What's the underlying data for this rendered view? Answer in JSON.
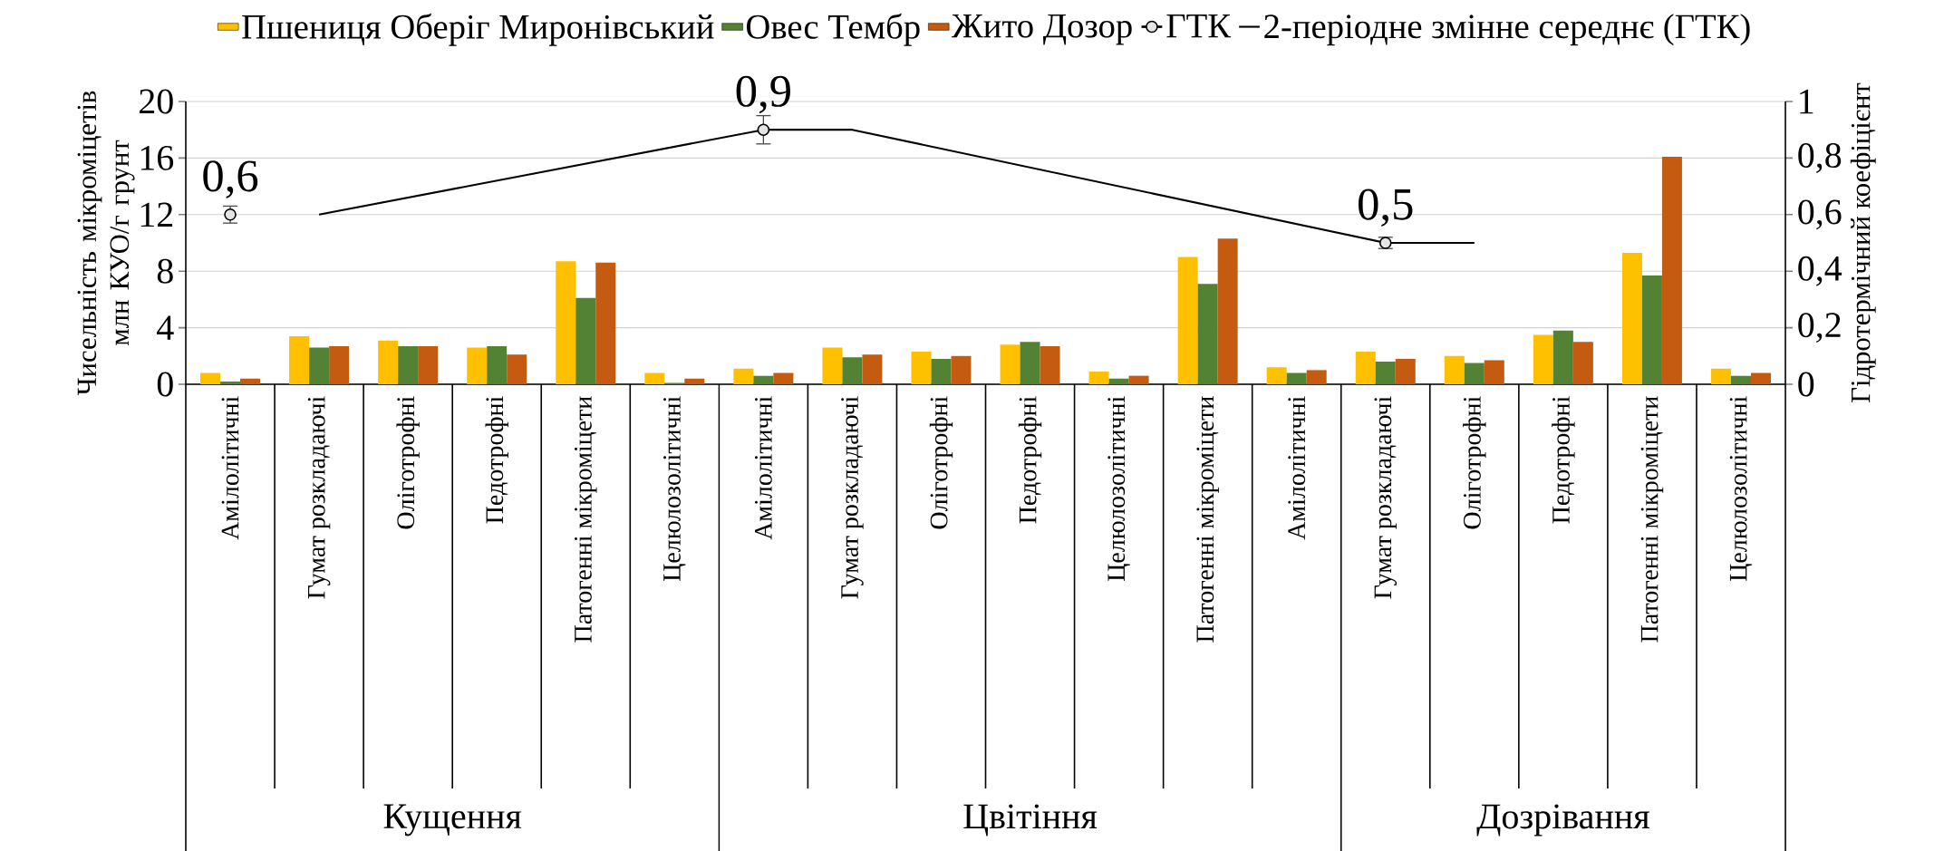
{
  "chart_data": {
    "type": "bar",
    "categories": [
      "Амілолітичні",
      "Гумат розкладаючі",
      "Оліготрофні",
      "Педотрофні",
      "Патогенні мікроміцети",
      "Целюлозолітичні",
      "Амілолітичні",
      "Гумат розкладаючі",
      "Оліготрофні",
      "Педотрофні",
      "Целюлозолітичні",
      "Патогенні мікроміцети",
      "Амілолітичні",
      "Гумат розкладаючі",
      "Оліготрофні",
      "Педотрофні",
      "Патогенні мікроміцети",
      "Целюлозолітичні"
    ],
    "ylabel": "Чисельність мікроміцетів млн КУО/г грунт",
    "y2label": "Гідротермічний коефіцієнт",
    "ylim": [
      0,
      20
    ],
    "yticks": [
      0,
      4,
      8,
      12,
      16,
      20
    ],
    "y2lim": [
      0,
      1
    ],
    "y2ticks": [
      0,
      {
        "value": 0.2,
        "label": "0,2"
      },
      {
        "value": 0.4,
        "label": "0,4"
      },
      {
        "value": 0.6,
        "label": "0,6"
      },
      {
        "value": 0.8,
        "label": "0,8"
      },
      1
    ],
    "grid": "y",
    "legend": "top",
    "annotations": [
      "Кущення",
      "Цвітіння",
      "Дозрівання"
    ],
    "series": [
      {
        "name": "Пшениця Оберіг Миронівський",
        "color": "#ffc000",
        "values": [
          0.8,
          3.4,
          3.1,
          2.6,
          8.7,
          0.8,
          1.1,
          2.6,
          2.3,
          2.8,
          0.9,
          9.0,
          1.2,
          2.3,
          2.0,
          3.5,
          9.3,
          1.1
        ]
      },
      {
        "name": "Овес Тембр",
        "color": "#548235",
        "values": [
          0.2,
          2.6,
          2.7,
          2.7,
          6.1,
          0.1,
          0.6,
          1.9,
          1.8,
          3.0,
          0.4,
          7.1,
          0.8,
          1.6,
          1.5,
          3.8,
          7.7,
          0.6
        ]
      },
      {
        "name": "Жито Дозор",
        "color": "#c55a11",
        "values": [
          0.4,
          2.7,
          2.7,
          2.1,
          8.6,
          0.4,
          0.8,
          2.1,
          2.0,
          2.7,
          0.6,
          10.3,
          1.0,
          1.8,
          1.7,
          3.0,
          16.1,
          0.8
        ]
      },
      {
        "name": "ГТК",
        "type": "scatter",
        "axis": "y2",
        "color": "#000000",
        "marker": "circle",
        "values": [
          0.6,
          null,
          null,
          null,
          null,
          null,
          0.9,
          null,
          null,
          null,
          null,
          null,
          null,
          0.5,
          null,
          null,
          null,
          null
        ],
        "errors": [
          0.03,
          null,
          null,
          null,
          null,
          null,
          0.05,
          null,
          null,
          null,
          null,
          null,
          null,
          0.02,
          null,
          null,
          null,
          null
        ],
        "value_labels": [
          "0,6",
          null,
          null,
          null,
          null,
          null,
          "0,9",
          null,
          null,
          null,
          null,
          null,
          null,
          "0,5",
          null,
          null,
          null,
          null
        ]
      },
      {
        "name": "2-періодне змінне середнє (ГТК)",
        "type": "line",
        "axis": "y2",
        "color": "#000000",
        "values": [
          null,
          0.6,
          null,
          null,
          null,
          null,
          0.9,
          0.9,
          null,
          null,
          null,
          null,
          null,
          0.5,
          0.5,
          null,
          null,
          null
        ]
      }
    ]
  }
}
